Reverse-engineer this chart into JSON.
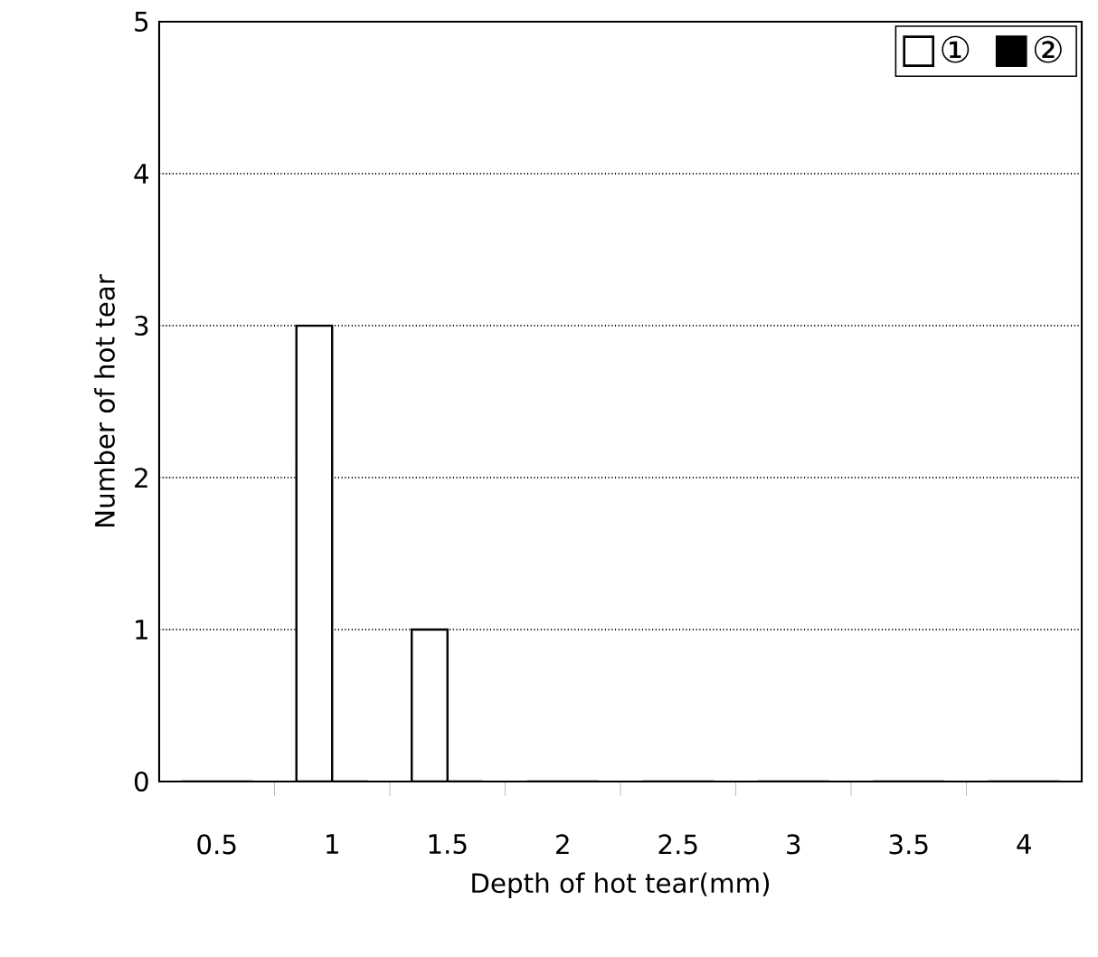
{
  "chart_data": {
    "type": "bar",
    "xlabel": "Depth of hot tear(mm)",
    "ylabel": "Number of hot tear",
    "categories": [
      "0.5",
      "1",
      "1.5",
      "2",
      "2.5",
      "3",
      "3.5",
      "4"
    ],
    "series": [
      {
        "name": "①",
        "color": "#ffffff",
        "values": [
          0,
          3,
          1,
          0,
          0,
          0,
          0,
          0
        ]
      },
      {
        "name": "②",
        "color": "#000000",
        "values": [
          0,
          0,
          0,
          0,
          0,
          0,
          0,
          0
        ]
      }
    ],
    "ylim": [
      0,
      5
    ],
    "yticks": [
      0,
      1,
      2,
      3,
      4,
      5
    ],
    "grid": "y",
    "legend": "top right"
  }
}
